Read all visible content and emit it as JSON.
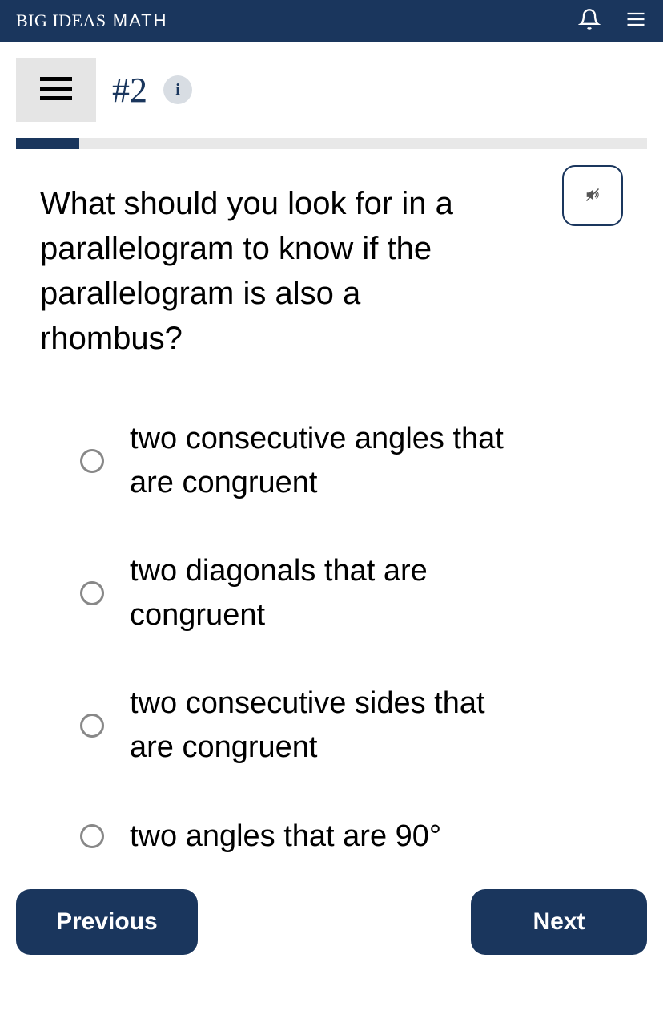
{
  "header": {
    "title_big_ideas": "BIG IDEAS",
    "title_math": " MATH"
  },
  "toolbar": {
    "question_number": "#2",
    "info_label": "i"
  },
  "progress": {
    "percent": 10,
    "fill_color": "#1a365d",
    "track_color": "#e8e8e8"
  },
  "question": {
    "text": "What should you look for in a parallelogram to know if the parallelogram is also a rhombus?"
  },
  "options": [
    {
      "label": "two consecutive angles that are congruent"
    },
    {
      "label": "two diagonals that are congruent"
    },
    {
      "label": "two consecutive sides that are congruent"
    },
    {
      "label": "two angles that are 90°"
    }
  ],
  "nav": {
    "previous": "Previous",
    "next": "Next"
  },
  "colors": {
    "primary": "#1a365d",
    "background": "#ffffff",
    "toolbar_button": "#e5e5e5",
    "info_button": "#d8dde3",
    "radio_border": "#888888"
  }
}
